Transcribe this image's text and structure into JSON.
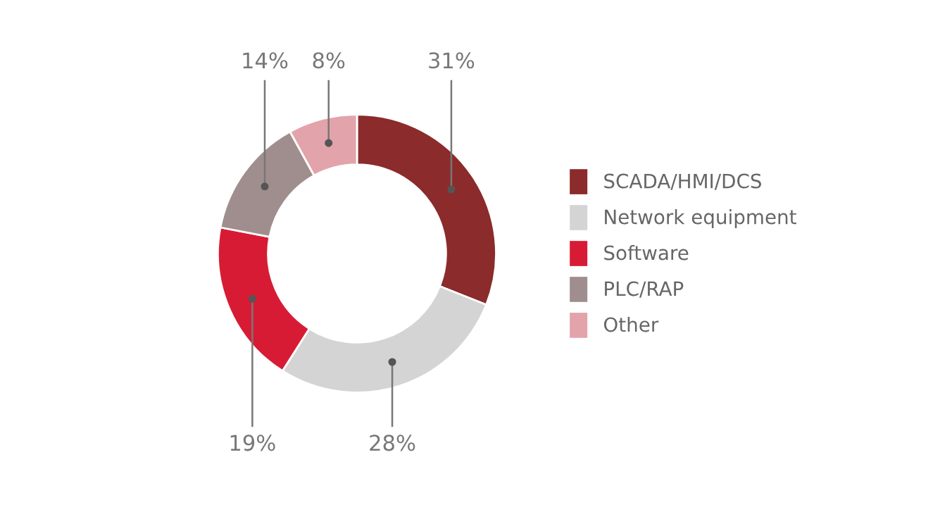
{
  "chart_data": {
    "type": "donut",
    "categories": [
      "SCADA/HMI/DCS",
      "Network equipment",
      "Software",
      "PLC/RAP",
      "Other"
    ],
    "values": [
      31,
      28,
      19,
      14,
      8
    ],
    "colors": [
      "#8b2b2b",
      "#d4d4d4",
      "#d81b34",
      "#a08e8f",
      "#e3a3ab"
    ],
    "value_labels": [
      "31%",
      "28%",
      "19%",
      "14%",
      "8%"
    ],
    "legend": "right"
  }
}
